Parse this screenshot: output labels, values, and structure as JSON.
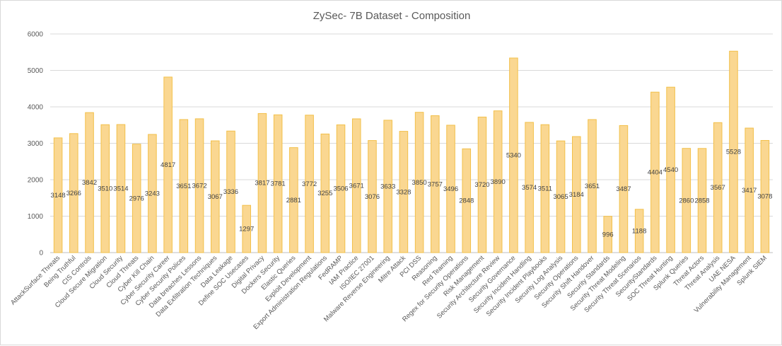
{
  "chart_data": {
    "type": "bar",
    "title": "ZySec- 7B Dataset - Composition",
    "xlabel": "",
    "ylabel": "",
    "ylim": [
      0,
      6000
    ],
    "yticks": [
      0,
      1000,
      2000,
      3000,
      4000,
      5000,
      6000
    ],
    "grid": true,
    "legend": "none",
    "bar_color": "#fad791",
    "bar_border_color": "#f2c04a",
    "categories": [
      "AttackSurface Threats",
      "Being Truthful",
      "CIS Controls",
      "Cloud Secure Migration",
      "Cloud Security",
      "Cloud Threats",
      "Cyber Kill Chain",
      "Cyber Security Career",
      "Cyber Security Polices",
      "Data breaches Lessons",
      "Data Exfiltration Techniques",
      "Data Leakage",
      "Define SOC Usecases",
      "Digital Privacy",
      "Dockers Security",
      "Elastic Queries",
      "Exploit Development",
      "Export Administration Regulations",
      "FedRAMP",
      "IAM Practice",
      "ISO/IEC 27001",
      "Malware Reverse Engineering",
      "Mitre Attack",
      "PCI DSS",
      "Reasoning",
      "Red Teaming",
      "Regex for Security Operations",
      "Risk Management",
      "Security Architecture Review",
      "Security Governance",
      "Security Incident Handling",
      "Security Incident Playbooks",
      "Security Log Analysis",
      "Security Operations",
      "Security Shift Handover",
      "Security Standards",
      "Security Threat Modeling",
      "Security Threat Scenarios",
      "SecurityStandards",
      "SOC Threat Hunting",
      "Splunk Queries",
      "Threat Actors",
      "Threat Analysis",
      "UAE NESA",
      "Vulnerability Management",
      "Splunk SIEM"
    ],
    "values": [
      3148,
      3266,
      3842,
      3510,
      3514,
      2976,
      3243,
      4817,
      3651,
      3672,
      3067,
      3336,
      1297,
      3817,
      3781,
      2881,
      3772,
      3255,
      3506,
      3671,
      3076,
      3633,
      3328,
      3850,
      3757,
      3496,
      2848,
      3720,
      3890,
      5340,
      3574,
      3511,
      3065,
      3184,
      3651,
      996,
      3487,
      1188,
      4404,
      4540,
      2860,
      2858,
      3567,
      5528,
      3417,
      3078
    ]
  }
}
